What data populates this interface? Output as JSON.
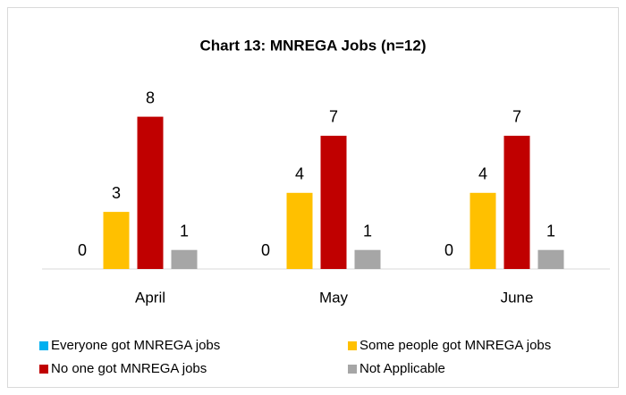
{
  "chart_data": {
    "type": "bar",
    "title": "Chart 13: MNREGA Jobs (n=12)",
    "categories": [
      "April",
      "May",
      "June"
    ],
    "series": [
      {
        "name": "Everyone got MNREGA jobs",
        "color": "#00b0f0",
        "values": [
          0,
          0,
          0
        ]
      },
      {
        "name": "Some people got MNREGA jobs",
        "color": "#ffc000",
        "values": [
          3,
          4,
          4
        ]
      },
      {
        "name": "No one got MNREGA jobs",
        "color": "#c00000",
        "values": [
          8,
          7,
          7
        ]
      },
      {
        "name": "Not Applicable",
        "color": "#a6a6a6",
        "values": [
          1,
          1,
          1
        ]
      }
    ]
  }
}
